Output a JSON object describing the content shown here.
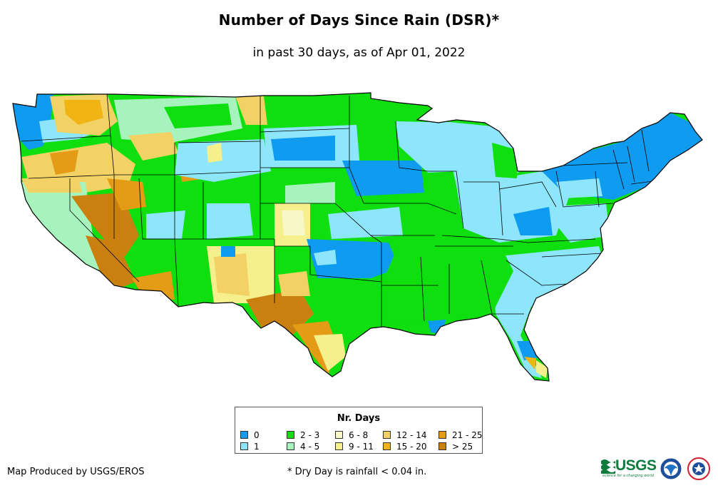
{
  "title": "Number of Days Since Rain (DSR)*",
  "subtitle": "in past 30 days, as of Apr 01, 2022",
  "legend": {
    "title": "Nr. Days",
    "items": [
      {
        "label": "0",
        "color": "#0f9bf0"
      },
      {
        "label": "1",
        "color": "#8de6fb"
      },
      {
        "label": "2 - 3",
        "color": "#0fde0f"
      },
      {
        "label": "4 - 5",
        "color": "#a6f3be"
      },
      {
        "label": "6 - 8",
        "color": "#f7f7c8"
      },
      {
        "label": "9 - 11",
        "color": "#f5ef8c"
      },
      {
        "label": "12 - 14",
        "color": "#f2d264"
      },
      {
        "label": "15 - 20",
        "color": "#f0b414"
      },
      {
        "label": "21 - 25",
        "color": "#e49b16"
      },
      {
        "label": "> 25",
        "color": "#c9800e"
      }
    ]
  },
  "footer": {
    "credit": "Map Produced by USGS/EROS",
    "footnote": "* Dry Day is rainfall < 0.04 in."
  },
  "logos": {
    "usgs": "USGS",
    "usgs_tagline": "science for a changing world",
    "noaa": "NOAA",
    "nws": "NATIONAL WEATHER SERVICE"
  },
  "map": {
    "region": "Contiguous United States",
    "outline_color": "#000000",
    "regions": [
      {
        "area": "Pacific Northwest coast",
        "category": "0"
      },
      {
        "area": "Northern Rockies / Montana",
        "category": "2 - 3"
      },
      {
        "area": "Idaho / eastern Oregon",
        "category": "12 - 14"
      },
      {
        "area": "California",
        "category": "4 - 5"
      },
      {
        "area": "Nevada / southeastern California",
        "category": "> 25"
      },
      {
        "area": "Arizona / Utah / Colorado",
        "category": "2 - 3"
      },
      {
        "area": "New Mexico",
        "category": "9 - 11"
      },
      {
        "area": "West Texas",
        "category": "> 25"
      },
      {
        "area": "South Texas",
        "category": "21 - 25"
      },
      {
        "area": "Dakotas / Wyoming",
        "category": "1"
      },
      {
        "area": "Southern Plains",
        "category": "2 - 3"
      },
      {
        "area": "Oklahoma / Iowa",
        "category": "0"
      },
      {
        "area": "Lower Mississippi Valley",
        "category": "2 - 3"
      },
      {
        "area": "Southeast / Ohio Valley",
        "category": "1"
      },
      {
        "area": "Northeast / New England",
        "category": "0"
      },
      {
        "area": "South Florida",
        "category": "0"
      }
    ]
  }
}
